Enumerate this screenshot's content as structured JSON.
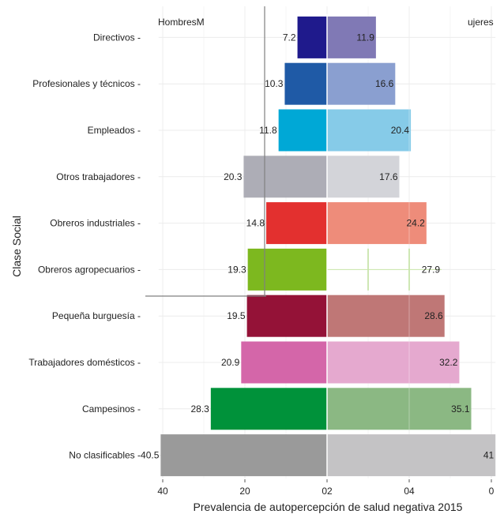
{
  "chart_data": {
    "type": "bar",
    "subtype": "population-pyramid",
    "ylabel": "Clase Social",
    "xlabel": "Prevalencia de  autopercepción de salud negativa  2015",
    "left_header": "HombresM",
    "right_header": "ujeres",
    "x_ticks": [
      "40",
      "20",
      "02",
      "04",
      "0"
    ],
    "categories": [
      "Directivos",
      "Profesionales y técnicos",
      "Empleados",
      "Otros trabajadores",
      "Obreros industriales",
      "Obreros agropecuarios",
      "Pequeña burguesía",
      "Trabajadores domésticos",
      "Campesinos",
      "No clasificables"
    ],
    "series": [
      {
        "side": "left",
        "values": [
          7.2,
          10.3,
          11.8,
          20.3,
          14.8,
          19.3,
          19.5,
          20.9,
          28.3,
          40.5
        ],
        "labels": [
          "7.2",
          "10.3",
          "11.8",
          "20.3",
          "14.8",
          "19.3",
          "19.5",
          "20.9",
          "28.3",
          "40.5"
        ],
        "colors": [
          "#1f1a8c",
          "#1f5aa6",
          "#00a8d6",
          "#adadb6",
          "#e3302f",
          "#7db81f",
          "#941237",
          "#d466a9",
          "#00923a",
          "#9a9a9a"
        ]
      },
      {
        "side": "right",
        "values": [
          11.9,
          16.6,
          20.4,
          17.6,
          24.2,
          27.9,
          28.6,
          32.2,
          35.1,
          41
        ],
        "labels": [
          "11.9",
          "16.6",
          "20.4",
          "17.6",
          "24.2",
          "27.9",
          "28.6",
          "32.2",
          "35.1",
          "41"
        ],
        "colors": [
          "#8079b5",
          "#8a9fd0",
          "#86cbe8",
          "#d3d4d9",
          "#ee8c7a",
          "#ffffff",
          "#bf7776",
          "#e5a9cf",
          "#8bb883",
          "#c4c3c5"
        ]
      }
    ],
    "xlim": [
      -41,
      41
    ],
    "grid": true
  }
}
